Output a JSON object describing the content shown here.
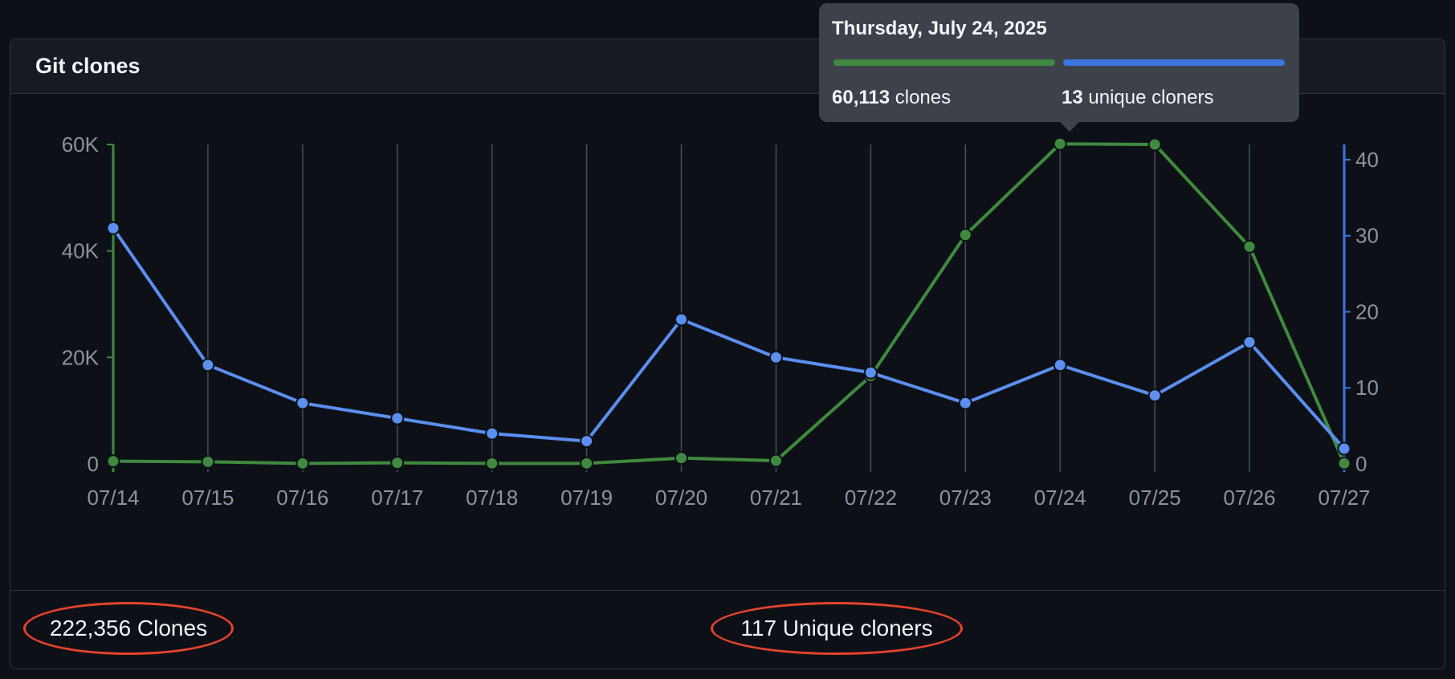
{
  "panel": {
    "title": "Git clones"
  },
  "tooltip": {
    "date": "Thursday, July 24, 2025",
    "clones_value": "60,113",
    "clones_label": "clones",
    "unique_value": "13",
    "unique_label": "unique cloners"
  },
  "footer": {
    "clones_total": "222,356 Clones",
    "unique_total": "117 Unique cloners"
  },
  "colors": {
    "clones": "#3f8a3f",
    "unique": "#5b8ff0",
    "grid": "#484f58",
    "tick": "#8b949e"
  },
  "chart_data": {
    "type": "line",
    "categories": [
      "07/14",
      "07/15",
      "07/16",
      "07/17",
      "07/18",
      "07/19",
      "07/20",
      "07/21",
      "07/22",
      "07/23",
      "07/24",
      "07/25",
      "07/26",
      "07/27"
    ],
    "series": [
      {
        "values": [
          500,
          400,
          100,
          200,
          100,
          100,
          1100,
          600,
          16500,
          43000,
          60113,
          60000,
          40800,
          100
        ],
        "axis": "left"
      },
      {
        "values": [
          31,
          13,
          8,
          6,
          4,
          3,
          19,
          14,
          12,
          8,
          13,
          9,
          16,
          2
        ],
        "axis": "right"
      }
    ],
    "y_left": {
      "min": 0,
      "max": 60000,
      "ticks": [
        0,
        20000,
        40000,
        60000
      ],
      "tick_labels": [
        "0",
        "20K",
        "40K",
        "60K"
      ]
    },
    "y_right": {
      "min": 0,
      "max": 42,
      "ticks": [
        0,
        10,
        20,
        30,
        40
      ],
      "tick_labels": [
        "0",
        "10",
        "20",
        "30",
        "40"
      ]
    },
    "grid": "vertical",
    "highlighted_category": "07/24"
  }
}
